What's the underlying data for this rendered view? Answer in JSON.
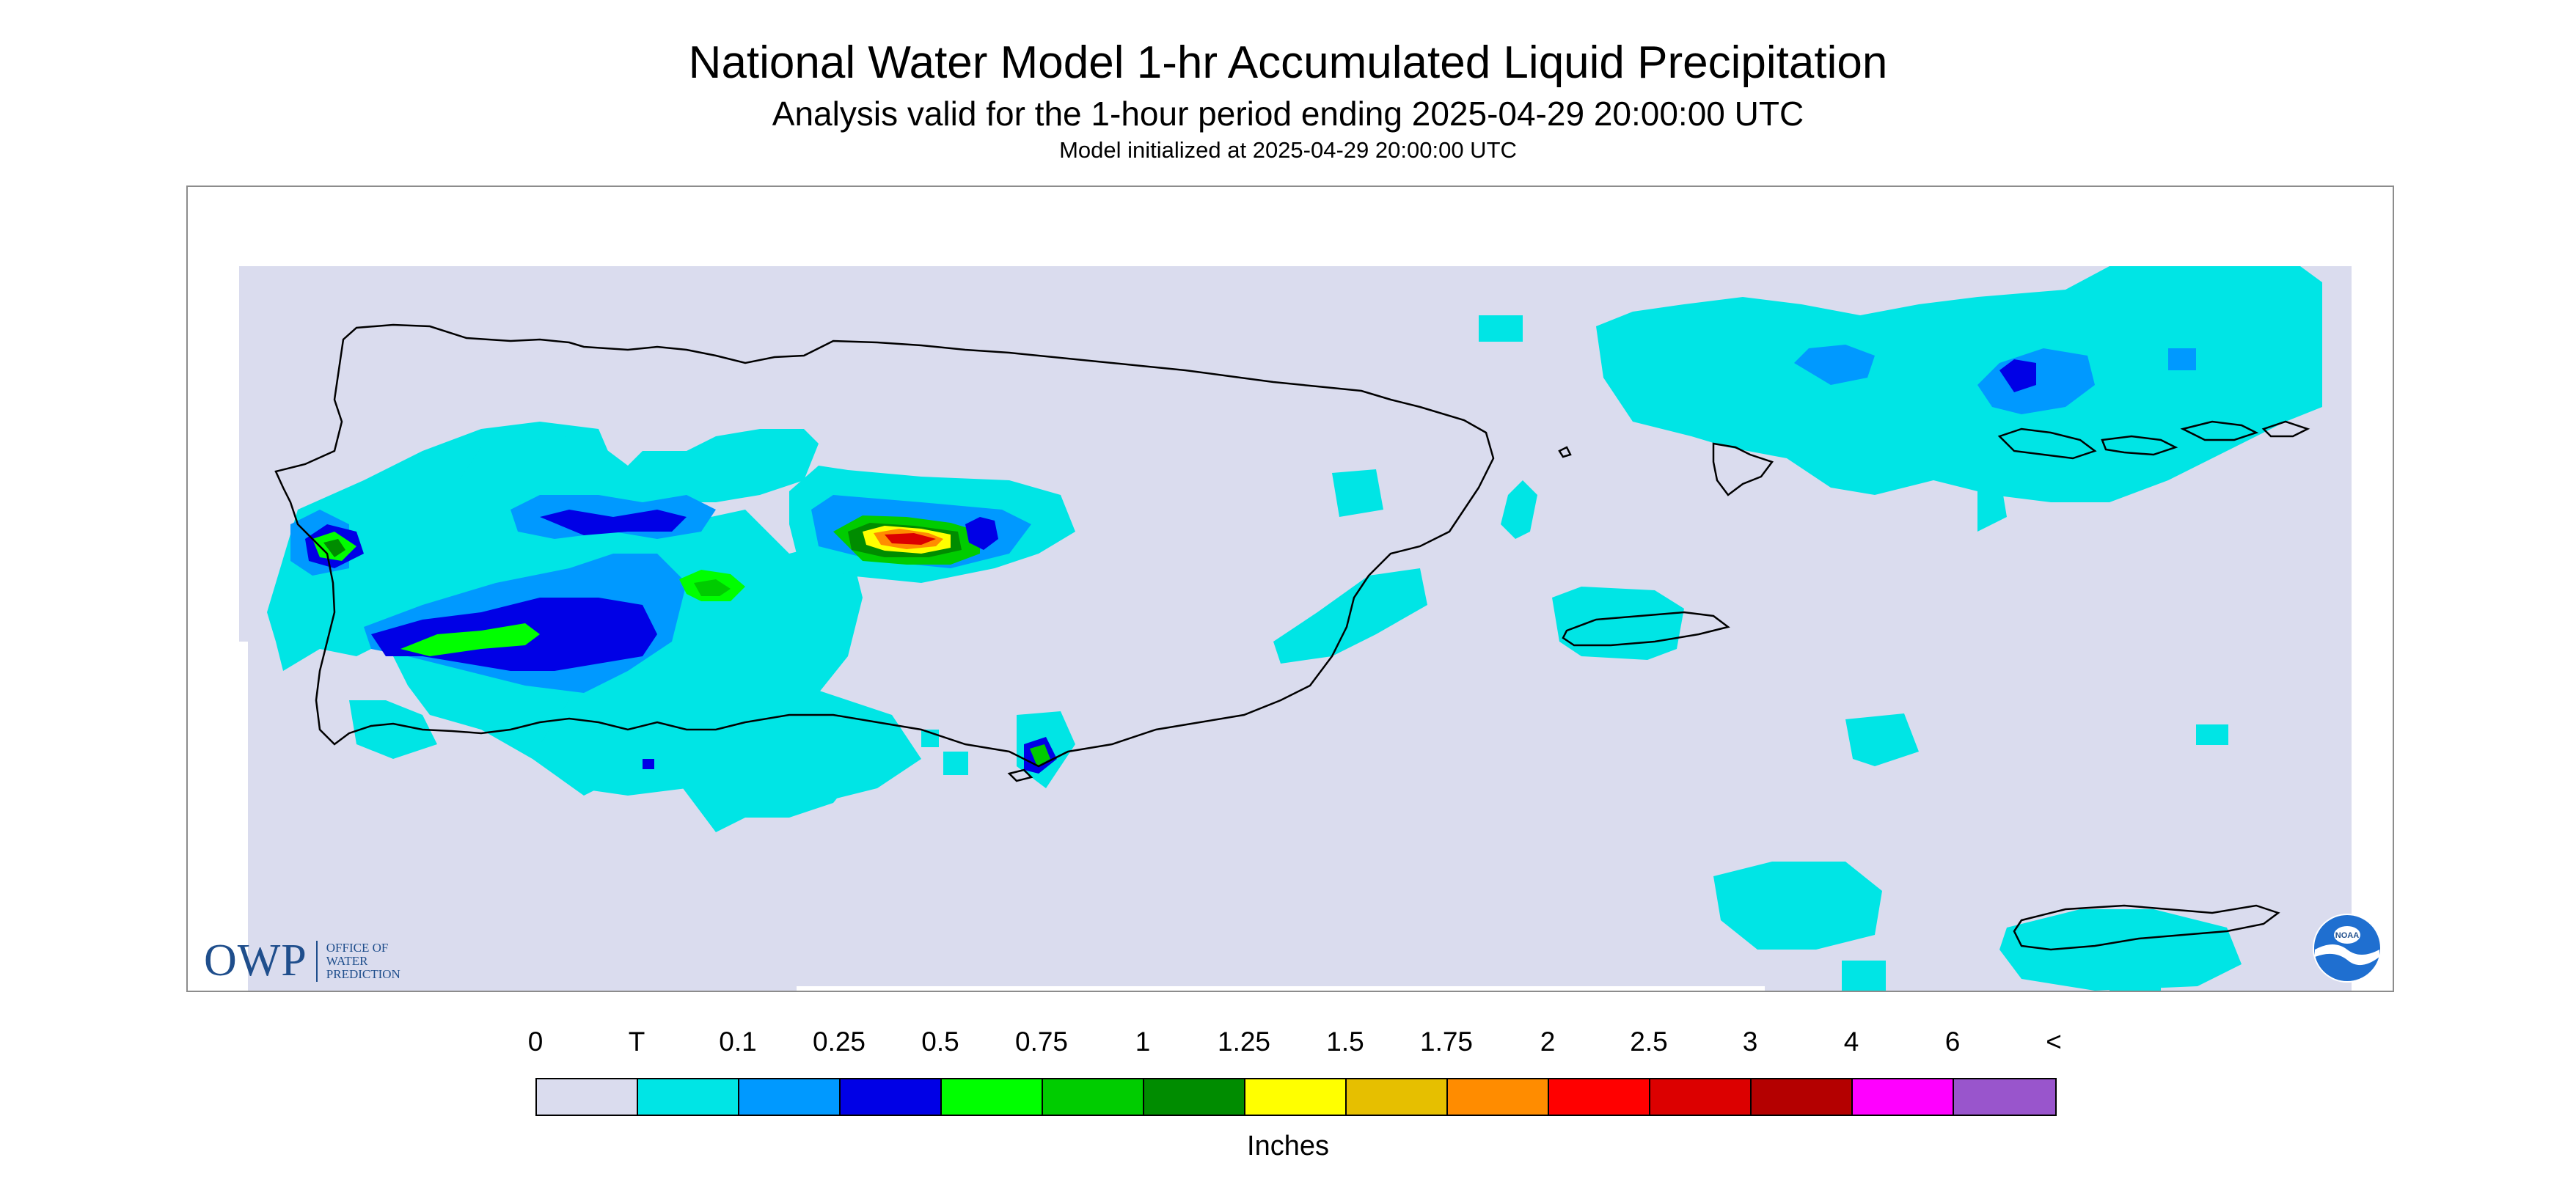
{
  "header": {
    "title": "National Water Model 1-hr Accumulated Liquid Precipitation",
    "subtitle": "Analysis valid for the 1-hour period ending 2025-04-29 20:00:00 UTC",
    "init": "Model initialized at 2025-04-29 20:00:00 UTC"
  },
  "logos": {
    "owp_letters": "OWP",
    "owp_words": [
      "OFFICE OF",
      "WATER",
      "PREDICTION"
    ],
    "noaa": "NOAA"
  },
  "colors": {
    "background_field": "#dadcee",
    "coastline": "#000000"
  },
  "legend": {
    "ticks": [
      "0",
      "T",
      "0.1",
      "0.25",
      "0.5",
      "0.75",
      "1",
      "1.25",
      "1.5",
      "1.75",
      "2",
      "2.5",
      "3",
      "4",
      "6",
      "<"
    ],
    "colors": [
      "#dadcee",
      "#00e5e5",
      "#0099ff",
      "#0000e6",
      "#00ff00",
      "#00cc00",
      "#008c00",
      "#ffff00",
      "#e6bf00",
      "#ff8c00",
      "#ff0000",
      "#dc0000",
      "#b40000",
      "#ff00ff",
      "#9955cc"
    ],
    "units": "Inches"
  }
}
